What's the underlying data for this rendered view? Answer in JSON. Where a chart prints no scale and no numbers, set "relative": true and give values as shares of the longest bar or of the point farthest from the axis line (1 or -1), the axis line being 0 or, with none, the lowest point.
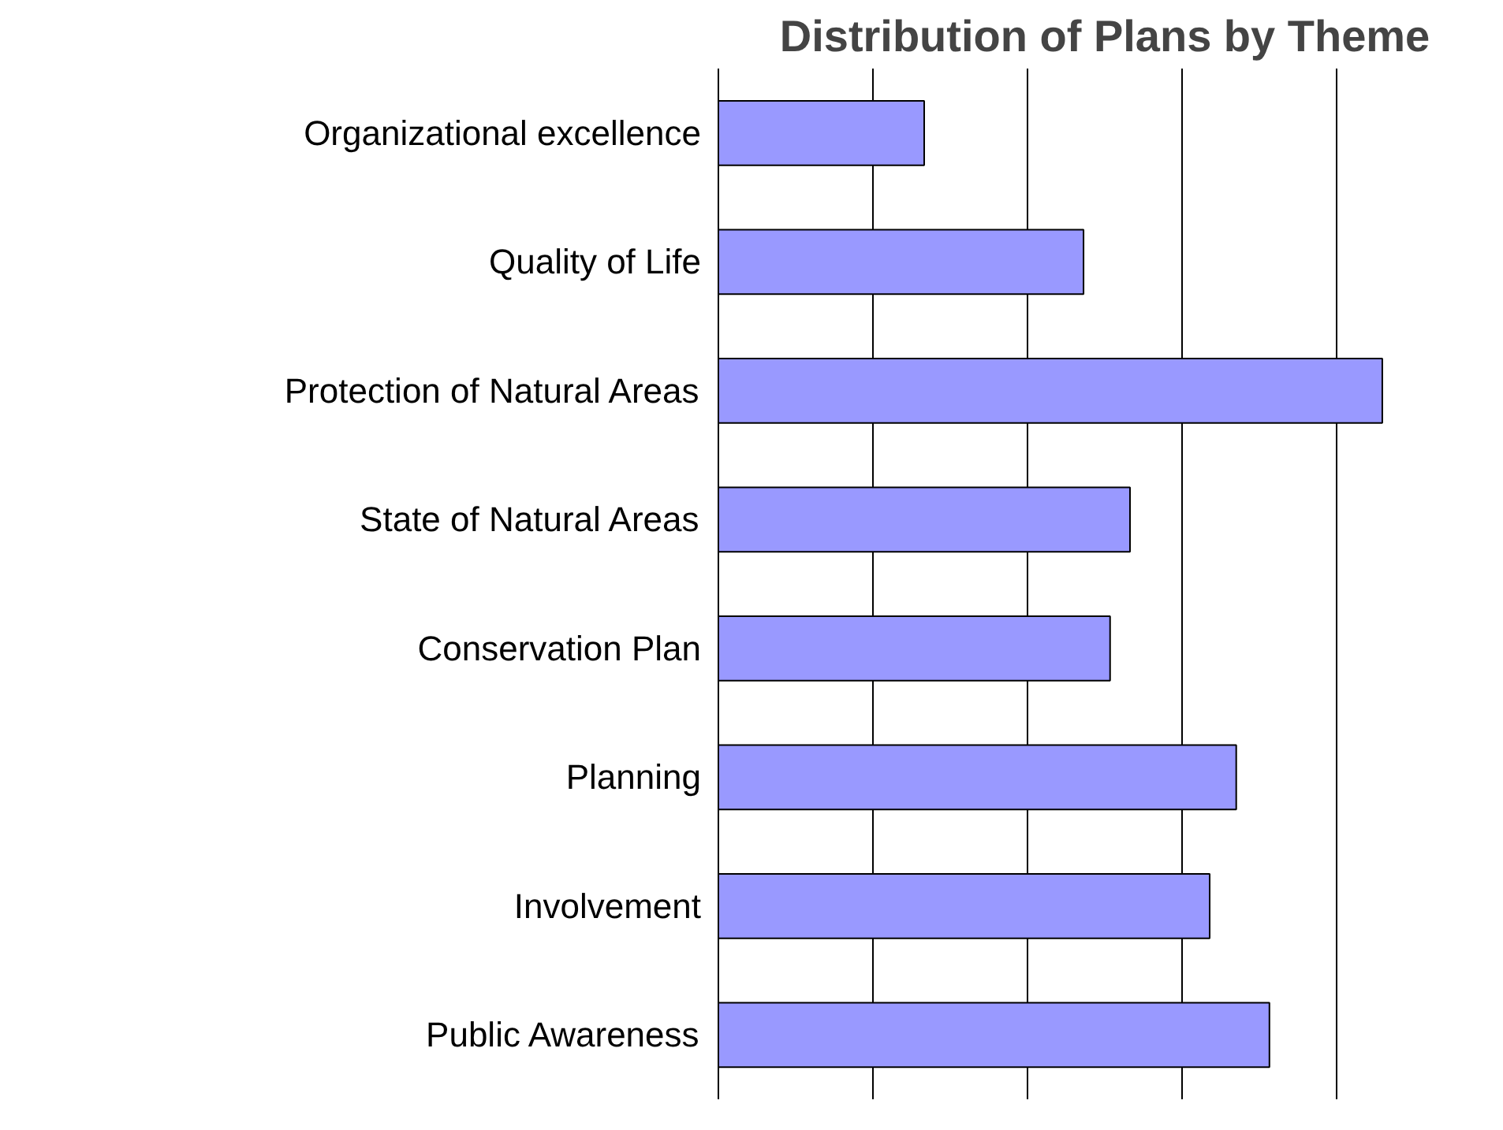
{
  "chart_data": {
    "type": "bar",
    "title": "Distribution of Plans by Theme",
    "orientation": "horizontal",
    "relative": true,
    "grid": "x",
    "categories": [
      "Organizational excellence",
      "Quality of Life",
      "Protection of Natural Areas",
      "State of Natural Areas",
      "Conservation Plan",
      "Planning",
      "Involvement",
      "Public Awareness"
    ],
    "values": [
      0.31,
      0.55,
      1,
      0.62,
      0.59,
      0.78,
      0.74,
      0.83
    ],
    "color": "#9999ff"
  }
}
